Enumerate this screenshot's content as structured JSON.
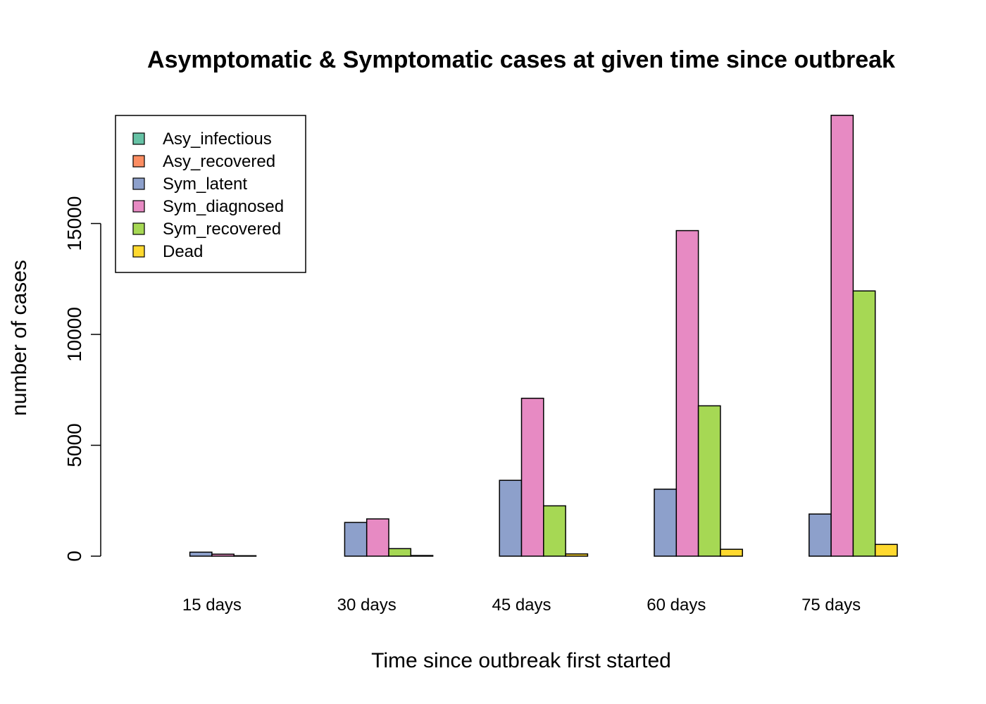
{
  "chart_data": {
    "type": "bar",
    "title": "Asymptomatic & Symptomatic cases at given time since outbreak",
    "xlabel": "Time since outbreak first started",
    "ylabel": "number of cases",
    "categories": [
      "15 days",
      "30 days",
      "45 days",
      "60 days",
      "75 days"
    ],
    "yticks": [
      0,
      5000,
      10000,
      15000
    ],
    "ylim": [
      0,
      19900
    ],
    "legend_position": "top-left",
    "series": [
      {
        "name": "Asy_infectious",
        "color": "#66C2A5",
        "values": [
          0,
          0,
          0,
          0,
          0
        ]
      },
      {
        "name": "Asy_recovered",
        "color": "#FC8D62",
        "values": [
          0,
          0,
          0,
          0,
          0
        ]
      },
      {
        "name": "Sym_latent",
        "color": "#8DA0CB",
        "values": [
          180,
          1520,
          3420,
          3020,
          1900
        ]
      },
      {
        "name": "Sym_diagnosed",
        "color": "#E78AC3",
        "values": [
          90,
          1680,
          7120,
          14680,
          19880
        ]
      },
      {
        "name": "Sym_recovered",
        "color": "#A6D854",
        "values": [
          20,
          340,
          2270,
          6780,
          11960
        ]
      },
      {
        "name": "Dead",
        "color": "#FFD92F",
        "values": [
          0,
          30,
          100,
          310,
          530
        ]
      }
    ]
  }
}
